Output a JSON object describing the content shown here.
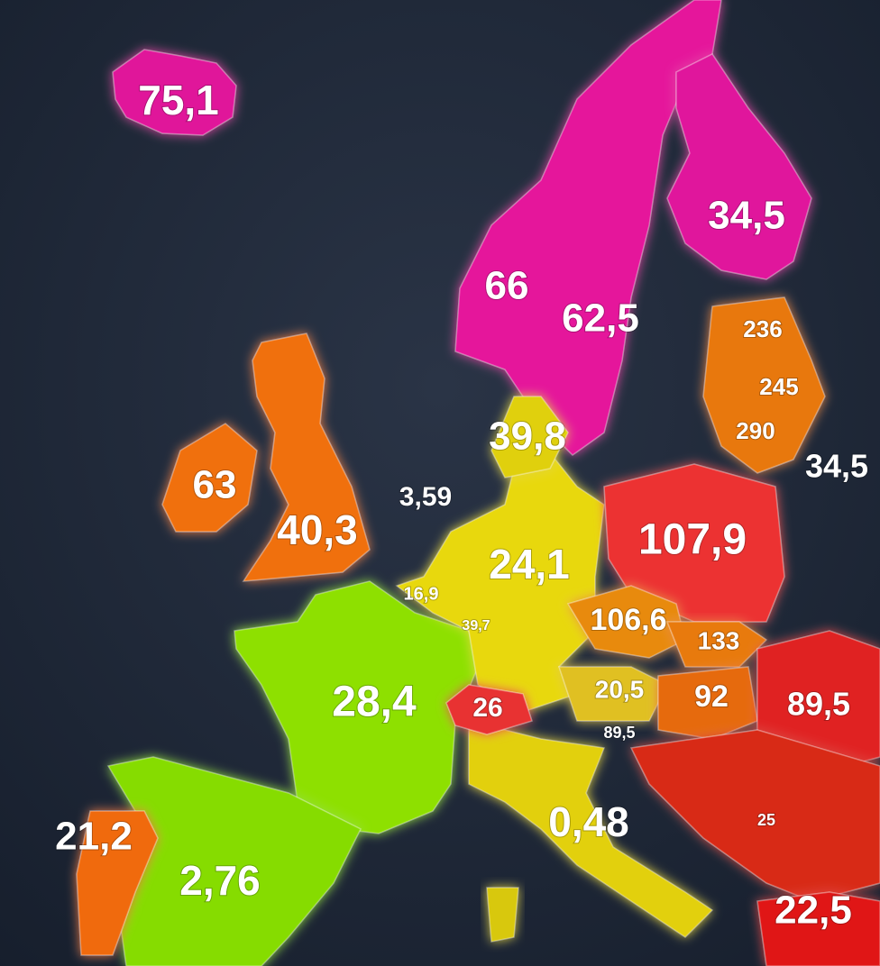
{
  "regions": [
    {
      "label": "75,1"
    },
    {
      "label": "34,5"
    },
    {
      "label": "66"
    },
    {
      "label": "62,5"
    },
    {
      "label": "236"
    },
    {
      "label": "245"
    },
    {
      "label": "290"
    },
    {
      "label": "34,5"
    },
    {
      "label": "39,8"
    },
    {
      "label": "63"
    },
    {
      "label": "3,59"
    },
    {
      "label": "40,3"
    },
    {
      "label": "24,1"
    },
    {
      "label": "107,9"
    },
    {
      "label": "16,9"
    },
    {
      "label": "39,7"
    },
    {
      "label": "106,6"
    },
    {
      "label": "133"
    },
    {
      "label": "20,5"
    },
    {
      "label": "92"
    },
    {
      "label": "89,5"
    },
    {
      "label": "28,4"
    },
    {
      "label": "26"
    },
    {
      "label": "89,5"
    },
    {
      "label": "25"
    },
    {
      "label": "0,48"
    },
    {
      "label": "21,2"
    },
    {
      "label": "2,76"
    },
    {
      "label": "22,5"
    }
  ]
}
